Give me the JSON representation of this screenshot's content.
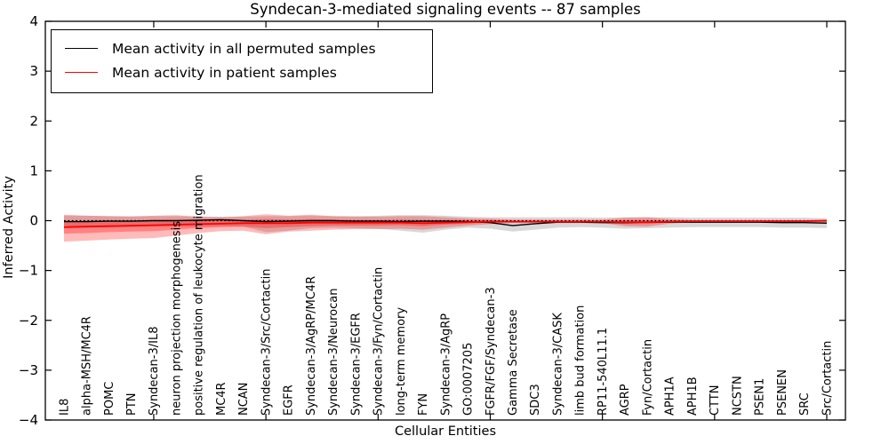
{
  "figure": {
    "title": "Syndecan-3-mediated signaling events -- 87 samples",
    "xlabel": "Cellular Entities",
    "ylabel": "Inferred Activity",
    "legend_items": [
      {
        "label": "Mean activity in all permuted samples",
        "color": "#000000"
      },
      {
        "label": "Mean activity in patient samples",
        "color": "#ff0000"
      }
    ]
  },
  "chart_data": {
    "type": "line",
    "title": "Syndecan-3-mediated signaling events -- 87 samples",
    "xlabel": "Cellular Entities",
    "ylabel": "Inferred Activity",
    "ylim": [
      -4,
      4
    ],
    "y_tick_values": [
      4,
      3,
      2,
      1,
      0,
      -1,
      -2,
      -3,
      -4
    ],
    "y_tick_labels": [
      "4",
      "3",
      "2",
      "1",
      "0",
      "−1",
      "−2",
      "−3",
      "−4"
    ],
    "x_tick_every": 5,
    "grid": false,
    "legend_position": "upper left",
    "zero_line": {
      "style": "dotted",
      "color": "#000000",
      "value": 0
    },
    "categories": [
      "IL8",
      "alpha-MSH/MC4R",
      "POMC",
      "PTN",
      "Syndecan-3/IL8",
      "neuron projection morphogenesis",
      "positive regulation of leukocyte migration",
      "MC4R",
      "NCAN",
      "Syndecan-3/Src/Cortactin",
      "EGFR",
      "Syndecan-3/AgRP/MC4R",
      "Syndecan-3/Neurocan",
      "Syndecan-3/EGFR",
      "Syndecan-3/Fyn/Cortactin",
      "long-term memory",
      "FYN",
      "Syndecan-3/AgRP",
      "GO:0007205",
      "FGFR/FGF/Syndecan-3",
      "Gamma Secretase",
      "SDC3",
      "Syndecan-3/CASK",
      "limb bud formation",
      "RP11-540L11.1",
      "AGRP",
      "Fyn/Cortactin",
      "APH1A",
      "APH1B",
      "CTTN",
      "NCSTN",
      "PSEN1",
      "PSENEN",
      "SRC",
      "Src/Cortactin"
    ],
    "series": [
      {
        "name": "Mean activity in all permuted samples",
        "color": "#000000",
        "values": [
          -0.02,
          -0.02,
          -0.01,
          -0.01,
          0.0,
          0.0,
          0.01,
          0.02,
          0.0,
          -0.02,
          -0.01,
          0.0,
          0.0,
          -0.01,
          -0.01,
          -0.02,
          -0.01,
          -0.01,
          -0.02,
          -0.04,
          -0.1,
          -0.06,
          -0.03,
          -0.03,
          -0.04,
          -0.04,
          -0.03,
          -0.03,
          -0.03,
          -0.03,
          -0.03,
          -0.03,
          -0.04,
          -0.04,
          -0.05
        ]
      },
      {
        "name": "Mean activity in patient samples",
        "color": "#ff0000",
        "values": [
          -0.13,
          -0.12,
          -0.11,
          -0.1,
          -0.09,
          -0.08,
          -0.07,
          -0.06,
          -0.05,
          -0.05,
          -0.05,
          -0.04,
          -0.04,
          -0.04,
          -0.04,
          -0.04,
          -0.05,
          -0.04,
          -0.03,
          -0.02,
          -0.02,
          -0.02,
          -0.02,
          -0.02,
          -0.02,
          -0.03,
          -0.03,
          -0.02,
          -0.01,
          -0.01,
          -0.01,
          -0.01,
          -0.01,
          -0.01,
          0.0
        ]
      }
    ],
    "bands": [
      {
        "name": "permuted-samples-band",
        "color": "#999999",
        "opacity": 0.38,
        "upper": [
          0.1,
          0.1,
          0.09,
          0.09,
          0.09,
          0.09,
          0.08,
          0.08,
          0.08,
          0.09,
          0.09,
          0.1,
          0.09,
          0.09,
          0.1,
          0.11,
          0.11,
          0.1,
          0.08,
          0.07,
          0.07,
          0.07,
          0.07,
          0.07,
          0.06,
          0.07,
          0.07,
          0.07,
          0.06,
          0.06,
          0.06,
          0.06,
          0.06,
          0.06,
          0.05
        ],
        "lower": [
          -0.14,
          -0.14,
          -0.13,
          -0.13,
          -0.12,
          -0.12,
          -0.12,
          -0.11,
          -0.12,
          -0.23,
          -0.2,
          -0.15,
          -0.14,
          -0.15,
          -0.16,
          -0.2,
          -0.24,
          -0.18,
          -0.14,
          -0.16,
          -0.22,
          -0.18,
          -0.14,
          -0.13,
          -0.14,
          -0.16,
          -0.15,
          -0.14,
          -0.13,
          -0.13,
          -0.13,
          -0.13,
          -0.14,
          -0.14,
          -0.15
        ]
      },
      {
        "name": "patient-samples-band-outer",
        "color": "#ff0000",
        "opacity": 0.27,
        "upper": [
          0.12,
          0.1,
          0.09,
          0.08,
          0.1,
          0.11,
          0.08,
          0.07,
          0.09,
          0.13,
          0.1,
          0.12,
          0.09,
          0.08,
          0.08,
          0.09,
          0.09,
          0.07,
          0.05,
          0.04,
          0.02,
          0.02,
          0.02,
          0.02,
          0.02,
          0.06,
          0.07,
          0.03,
          0.01,
          0.01,
          0.01,
          0.01,
          0.01,
          0.01,
          0.02
        ],
        "lower": [
          -0.42,
          -0.4,
          -0.38,
          -0.36,
          -0.35,
          -0.3,
          -0.25,
          -0.21,
          -0.2,
          -0.27,
          -0.22,
          -0.2,
          -0.18,
          -0.17,
          -0.17,
          -0.16,
          -0.18,
          -0.14,
          -0.1,
          -0.07,
          -0.05,
          -0.05,
          -0.05,
          -0.05,
          -0.05,
          -0.11,
          -0.12,
          -0.06,
          -0.03,
          -0.03,
          -0.03,
          -0.03,
          -0.03,
          -0.03,
          -0.04
        ]
      },
      {
        "name": "patient-samples-band-inner",
        "color": "#ff0000",
        "opacity": 0.3,
        "upper": [
          -0.02,
          -0.02,
          -0.02,
          -0.02,
          -0.01,
          0.0,
          0.0,
          0.0,
          0.01,
          0.03,
          0.02,
          0.03,
          0.02,
          0.01,
          0.01,
          0.02,
          0.01,
          0.01,
          0.01,
          0.01,
          0.0,
          0.0,
          0.0,
          0.0,
          0.0,
          0.01,
          0.01,
          0.0,
          0.0,
          0.0,
          0.0,
          0.0,
          0.0,
          0.0,
          0.01
        ],
        "lower": [
          -0.26,
          -0.25,
          -0.23,
          -0.22,
          -0.21,
          -0.18,
          -0.15,
          -0.13,
          -0.12,
          -0.15,
          -0.13,
          -0.11,
          -0.1,
          -0.1,
          -0.1,
          -0.09,
          -0.11,
          -0.08,
          -0.06,
          -0.04,
          -0.03,
          -0.03,
          -0.03,
          -0.03,
          -0.03,
          -0.07,
          -0.07,
          -0.04,
          -0.02,
          -0.02,
          -0.02,
          -0.02,
          -0.02,
          -0.02,
          -0.02
        ]
      }
    ]
  }
}
